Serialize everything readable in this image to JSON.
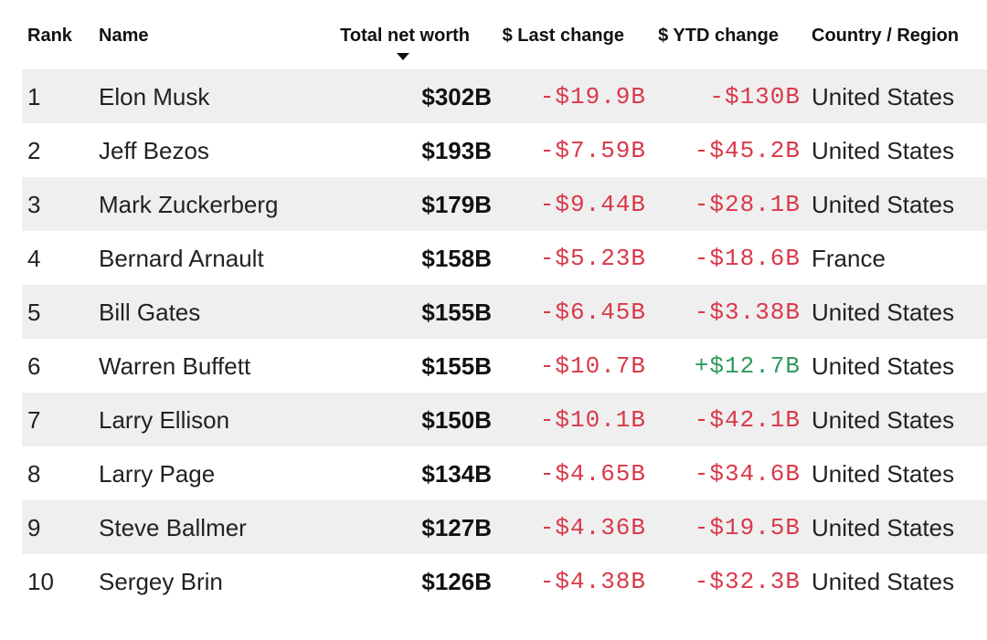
{
  "headers": {
    "rank": "Rank",
    "name": "Name",
    "worth": "Total net worth",
    "last": "$ Last change",
    "ytd": "$ YTD change",
    "country": "Country / Region"
  },
  "sort": {
    "column": "Total net worth",
    "direction": "descending",
    "icon": "sort-down-icon"
  },
  "colors": {
    "negative": "#d9394a",
    "positive": "#2f9a5b",
    "row_shade": "#efefef"
  },
  "rows": [
    {
      "rank": "1",
      "name": "Elon Musk",
      "worth": "$302B",
      "last": "-$19.9B",
      "ytd": "-$130B",
      "country": "United States"
    },
    {
      "rank": "2",
      "name": "Jeff Bezos",
      "worth": "$193B",
      "last": "-$7.59B",
      "ytd": "-$45.2B",
      "country": "United States"
    },
    {
      "rank": "3",
      "name": "Mark Zuckerberg",
      "worth": "$179B",
      "last": "-$9.44B",
      "ytd": "-$28.1B",
      "country": "United States"
    },
    {
      "rank": "4",
      "name": "Bernard Arnault",
      "worth": "$158B",
      "last": "-$5.23B",
      "ytd": "-$18.6B",
      "country": "France"
    },
    {
      "rank": "5",
      "name": "Bill Gates",
      "worth": "$155B",
      "last": "-$6.45B",
      "ytd": "-$3.38B",
      "country": "United States"
    },
    {
      "rank": "6",
      "name": "Warren Buffett",
      "worth": "$155B",
      "last": "-$10.7B",
      "ytd": "+$12.7B",
      "country": "United States"
    },
    {
      "rank": "7",
      "name": "Larry Ellison",
      "worth": "$150B",
      "last": "-$10.1B",
      "ytd": "-$42.1B",
      "country": "United States"
    },
    {
      "rank": "8",
      "name": "Larry Page",
      "worth": "$134B",
      "last": "-$4.65B",
      "ytd": "-$34.6B",
      "country": "United States"
    },
    {
      "rank": "9",
      "name": "Steve Ballmer",
      "worth": "$127B",
      "last": "-$4.36B",
      "ytd": "-$19.5B",
      "country": "United States"
    },
    {
      "rank": "10",
      "name": "Sergey Brin",
      "worth": "$126B",
      "last": "-$4.38B",
      "ytd": "-$32.3B",
      "country": "United States"
    }
  ]
}
